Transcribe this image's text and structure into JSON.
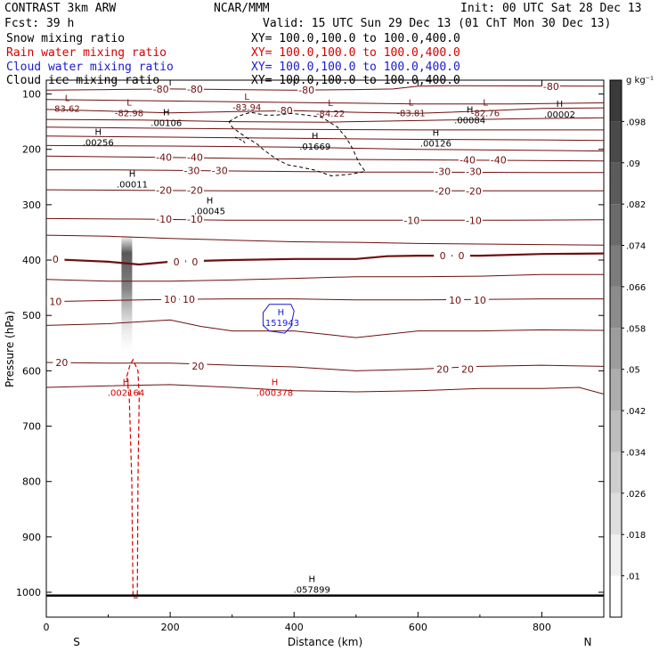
{
  "header": {
    "title": "CONTRAST  3km ARW",
    "center": "NCAR/MMM",
    "init": "Init: 00 UTC Sat 28 Dec 13",
    "fcst": "Fcst:   39 h",
    "valid": "Valid: 15 UTC Sun 29 Dec 13 (01 ChT Mon 30 Dec 13)"
  },
  "fields": [
    {
      "label": "Snow mixing ratio",
      "xy": "XY= 100.0,100.0 to 100.0,400.0",
      "color": "#000000"
    },
    {
      "label": "Rain water mixing ratio",
      "xy": "XY= 100.0,100.0 to 100.0,400.0",
      "color": "#d40000"
    },
    {
      "label": "Cloud water mixing ratio",
      "xy": "XY= 100.0,100.0 to 100.0,400.0",
      "color": "#1a1ad4"
    },
    {
      "label": "Cloud ice mixing ratio",
      "xy": "XY= 100.0,100.0 to 100.0,400.0",
      "color": "#000000"
    }
  ],
  "colorbar": {
    "unit": "g kg⁻¹",
    "ticks": [
      ".01",
      ".018",
      ".026",
      ".034",
      ".042",
      ".05",
      ".058",
      ".066",
      ".074",
      ".082",
      ".09",
      ".098"
    ],
    "low_color": "#ffffff",
    "high_color": "#3a3a3a"
  },
  "colors": {
    "temperature_contour": "#6e0f0f",
    "rain_water": "#d40000",
    "cloud_water": "#1a1ad4",
    "cloud_ice": "#000000"
  },
  "chart_data": {
    "type": "cross-section contour",
    "xlabel": "Distance (km)",
    "ylabel": "Pressure (hPa)",
    "xlim": [
      0,
      900
    ],
    "ylim": [
      1045,
      75
    ],
    "x_ticks": [
      "0",
      "200",
      "400",
      "600",
      "800"
    ],
    "y_ticks": [
      "100",
      "200",
      "300",
      "400",
      "500",
      "600",
      "700",
      "800",
      "900",
      "1000"
    ],
    "x_end_labels": {
      "left": "S",
      "right": "N"
    },
    "temperature_contours": [
      {
        "level": -80,
        "points": [
          [
            0,
            93
          ],
          [
            100,
            92
          ],
          [
            200,
            91
          ],
          [
            300,
            92
          ],
          [
            400,
            93
          ],
          [
            500,
            92
          ],
          [
            560,
            91
          ],
          [
            600,
            86
          ],
          [
            650,
            85
          ],
          [
            900,
            86
          ]
        ],
        "labels": [
          [
            185,
            91,
            "-80"
          ],
          [
            240,
            91,
            "-80"
          ],
          [
            420,
            93,
            "-80"
          ],
          [
            815,
            86,
            "-80"
          ]
        ]
      },
      {
        "level": null,
        "points": [
          [
            0,
            110
          ],
          [
            150,
            112
          ],
          [
            300,
            114
          ],
          [
            450,
            116
          ],
          [
            600,
            118
          ],
          [
            750,
            118
          ],
          [
            900,
            116
          ]
        ],
        "labels": []
      },
      {
        "level": null,
        "points": [
          [
            0,
            128
          ],
          [
            100,
            131
          ],
          [
            200,
            134
          ],
          [
            300,
            132
          ],
          [
            400,
            130
          ],
          [
            500,
            133
          ],
          [
            600,
            135
          ],
          [
            700,
            131
          ],
          [
            800,
            126
          ],
          [
            900,
            125
          ]
        ],
        "labels": [
          [
            385,
            130,
            "-80"
          ]
        ]
      },
      {
        "level": null,
        "points": [
          [
            0,
            146
          ],
          [
            150,
            147
          ],
          [
            300,
            150
          ],
          [
            450,
            151
          ],
          [
            600,
            148
          ],
          [
            750,
            145
          ],
          [
            900,
            143
          ]
        ],
        "labels": []
      },
      {
        "level": null,
        "points": [
          [
            0,
            160
          ],
          [
            200,
            162
          ],
          [
            400,
            164
          ],
          [
            600,
            165
          ],
          [
            800,
            165
          ],
          [
            900,
            165
          ]
        ],
        "labels": []
      },
      {
        "level": null,
        "points": [
          [
            0,
            176
          ],
          [
            200,
            178
          ],
          [
            400,
            180
          ],
          [
            600,
            182
          ],
          [
            800,
            183
          ],
          [
            900,
            184
          ]
        ],
        "labels": []
      },
      {
        "level": null,
        "points": [
          [
            0,
            193
          ],
          [
            200,
            194
          ],
          [
            400,
            196
          ],
          [
            600,
            200
          ],
          [
            800,
            202
          ],
          [
            900,
            203
          ]
        ],
        "labels": []
      },
      {
        "level": -40,
        "points": [
          [
            0,
            212
          ],
          [
            150,
            214
          ],
          [
            300,
            216
          ],
          [
            450,
            218
          ],
          [
            600,
            219
          ],
          [
            750,
            220
          ],
          [
            900,
            221
          ]
        ],
        "labels": [
          [
            190,
            214,
            "-40"
          ],
          [
            240,
            214,
            "-40"
          ],
          [
            680,
            219,
            "-40"
          ],
          [
            730,
            219,
            "-40"
          ]
        ]
      },
      {
        "level": -30,
        "points": [
          [
            0,
            237
          ],
          [
            100,
            237
          ],
          [
            200,
            238
          ],
          [
            300,
            239
          ],
          [
            400,
            240
          ],
          [
            500,
            241
          ],
          [
            600,
            241
          ],
          [
            800,
            242
          ],
          [
            900,
            242
          ]
        ],
        "labels": [
          [
            235,
            238,
            "-30"
          ],
          [
            280,
            238,
            "-30"
          ],
          [
            640,
            240,
            "-30"
          ],
          [
            690,
            240,
            "-30"
          ]
        ]
      },
      {
        "level": -20,
        "points": [
          [
            0,
            273
          ],
          [
            150,
            274
          ],
          [
            300,
            275
          ],
          [
            450,
            275
          ],
          [
            600,
            275
          ],
          [
            750,
            275
          ],
          [
            900,
            275
          ]
        ],
        "labels": [
          [
            190,
            274,
            "-20"
          ],
          [
            240,
            274,
            "-20"
          ],
          [
            640,
            275,
            "-20"
          ],
          [
            690,
            275,
            "-20"
          ]
        ]
      },
      {
        "level": -10,
        "points": [
          [
            0,
            325
          ],
          [
            150,
            326
          ],
          [
            300,
            328
          ],
          [
            450,
            328
          ],
          [
            600,
            328
          ],
          [
            750,
            328
          ],
          [
            900,
            327
          ]
        ],
        "labels": [
          [
            190,
            326,
            "-10"
          ],
          [
            240,
            326,
            "-10"
          ],
          [
            590,
            328,
            "-10"
          ],
          [
            690,
            328,
            "-10"
          ]
        ]
      },
      {
        "level": null,
        "points": [
          [
            0,
            355
          ],
          [
            100,
            357
          ],
          [
            200,
            361
          ],
          [
            300,
            364
          ],
          [
            400,
            367
          ],
          [
            500,
            368
          ],
          [
            600,
            370
          ],
          [
            700,
            371
          ],
          [
            800,
            372
          ],
          [
            900,
            373
          ]
        ],
        "labels": []
      },
      {
        "level": 0,
        "points": [
          [
            0,
            398
          ],
          [
            100,
            403
          ],
          [
            150,
            408
          ],
          [
            200,
            403
          ],
          [
            300,
            400
          ],
          [
            400,
            398
          ],
          [
            500,
            398
          ],
          [
            550,
            393
          ],
          [
            600,
            392
          ],
          [
            700,
            392
          ],
          [
            800,
            389
          ],
          [
            900,
            388
          ]
        ],
        "labels": [
          [
            15,
            398,
            "0"
          ],
          [
            210,
            403,
            "0"
          ],
          [
            240,
            403,
            "0"
          ],
          [
            640,
            392,
            "0"
          ],
          [
            670,
            392,
            "0"
          ]
        ],
        "thick": true
      },
      {
        "level": null,
        "points": [
          [
            0,
            435
          ],
          [
            100,
            438
          ],
          [
            200,
            438
          ],
          [
            300,
            436
          ],
          [
            400,
            433
          ],
          [
            500,
            430
          ],
          [
            600,
            430
          ],
          [
            700,
            429
          ],
          [
            800,
            426
          ],
          [
            900,
            426
          ]
        ],
        "labels": []
      },
      {
        "level": 10,
        "points": [
          [
            0,
            475
          ],
          [
            100,
            473
          ],
          [
            200,
            471
          ],
          [
            300,
            470
          ],
          [
            400,
            470
          ],
          [
            500,
            472
          ],
          [
            600,
            472
          ],
          [
            700,
            471
          ],
          [
            800,
            470
          ],
          [
            900,
            470
          ]
        ],
        "labels": [
          [
            15,
            475,
            "10"
          ],
          [
            200,
            471,
            "10"
          ],
          [
            230,
            471,
            "10"
          ],
          [
            660,
            472,
            "10"
          ],
          [
            700,
            472,
            "10"
          ]
        ]
      },
      {
        "level": null,
        "points": [
          [
            0,
            518
          ],
          [
            100,
            515
          ],
          [
            200,
            508
          ],
          [
            250,
            520
          ],
          [
            300,
            528
          ],
          [
            400,
            528
          ],
          [
            500,
            540
          ],
          [
            600,
            528
          ],
          [
            700,
            528
          ],
          [
            800,
            526
          ],
          [
            900,
            527
          ]
        ],
        "labels": []
      },
      {
        "level": 20,
        "points": [
          [
            0,
            585
          ],
          [
            100,
            586
          ],
          [
            200,
            586
          ],
          [
            300,
            590
          ],
          [
            400,
            593
          ],
          [
            500,
            600
          ],
          [
            600,
            597
          ],
          [
            700,
            592
          ],
          [
            800,
            590
          ],
          [
            900,
            592
          ]
        ],
        "labels": [
          [
            25,
            585,
            "20"
          ],
          [
            245,
            591,
            "20"
          ],
          [
            640,
            597,
            "20"
          ],
          [
            680,
            597,
            "20"
          ]
        ]
      },
      {
        "level": null,
        "points": [
          [
            0,
            630
          ],
          [
            100,
            627
          ],
          [
            200,
            625
          ],
          [
            300,
            630
          ],
          [
            400,
            636
          ],
          [
            500,
            638
          ],
          [
            600,
            636
          ],
          [
            700,
            632
          ],
          [
            800,
            632
          ],
          [
            860,
            630
          ],
          [
            900,
            642
          ]
        ],
        "labels": []
      }
    ],
    "extrema": [
      {
        "type": "L",
        "x": 5,
        "p": 119,
        "value": "83.62",
        "series": "temperature"
      },
      {
        "type": "L",
        "x": 105,
        "p": 127,
        "value": "-82.98",
        "series": "temperature"
      },
      {
        "type": "L",
        "x": 295,
        "p": 117,
        "value": "-83.94",
        "series": "temperature"
      },
      {
        "type": "L",
        "x": 430,
        "p": 128,
        "value": "-84.22",
        "series": "temperature"
      },
      {
        "type": "L",
        "x": 560,
        "p": 127,
        "value": "-83.81",
        "series": "temperature"
      },
      {
        "type": "L",
        "x": 680,
        "p": 127,
        "value": "-82.76",
        "series": "temperature"
      },
      {
        "type": "H",
        "x": 800,
        "p": 130,
        "value": ".00002",
        "series": "snow"
      },
      {
        "type": "H",
        "x": 655,
        "p": 140,
        "value": ".00084",
        "series": "snow"
      },
      {
        "type": "H",
        "x": 165,
        "p": 145,
        "value": ".00106",
        "series": "snow"
      },
      {
        "type": "H",
        "x": 55,
        "p": 180,
        "value": ".00256",
        "series": "snow"
      },
      {
        "type": "H",
        "x": 405,
        "p": 188,
        "value": ".01669",
        "series": "snow"
      },
      {
        "type": "H",
        "x": 600,
        "p": 182,
        "value": ".00126",
        "series": "snow"
      },
      {
        "type": "H",
        "x": 110,
        "p": 256,
        "value": ".00011",
        "series": "snow"
      },
      {
        "type": "H",
        "x": 235,
        "p": 304,
        "value": ".00045",
        "series": "snow"
      },
      {
        "type": "H",
        "x": 350,
        "p": 506,
        "value": ".151943",
        "series": "cloud_water"
      },
      {
        "type": "H",
        "x": 100,
        "p": 632,
        "value": ".002164",
        "series": "rain"
      },
      {
        "type": "H",
        "x": 340,
        "p": 632,
        "value": ".000378",
        "series": "rain"
      },
      {
        "type": "H",
        "x": 400,
        "p": 988,
        "value": ".057899",
        "series": "cloud_ice"
      }
    ],
    "cloud_ice_region": [
      [
        295,
        150
      ],
      [
        310,
        140
      ],
      [
        330,
        133
      ],
      [
        352,
        138
      ],
      [
        372,
        138
      ],
      [
        395,
        135
      ],
      [
        420,
        138
      ],
      [
        445,
        142
      ],
      [
        470,
        160
      ],
      [
        485,
        180
      ],
      [
        495,
        200
      ],
      [
        505,
        225
      ],
      [
        515,
        240
      ],
      [
        490,
        245
      ],
      [
        460,
        248
      ],
      [
        435,
        238
      ],
      [
        410,
        232
      ],
      [
        390,
        228
      ],
      [
        375,
        220
      ],
      [
        362,
        210
      ],
      [
        350,
        200
      ],
      [
        340,
        190
      ],
      [
        325,
        180
      ],
      [
        312,
        170
      ],
      [
        300,
        160
      ]
    ],
    "cloud_ice_patch": [
      [
        305,
        178
      ],
      [
        318,
        185
      ],
      [
        322,
        190
      ]
    ],
    "cloud_water_region": [
      [
        350,
        495
      ],
      [
        360,
        480
      ],
      [
        385,
        480
      ],
      [
        395,
        480
      ],
      [
        400,
        492
      ],
      [
        395,
        520
      ],
      [
        385,
        532
      ],
      [
        360,
        528
      ],
      [
        350,
        518
      ]
    ],
    "rain_region": [
      [
        130,
        610
      ],
      [
        135,
        590
      ],
      [
        140,
        580
      ],
      [
        148,
        600
      ],
      [
        150,
        650
      ],
      [
        148,
        800
      ],
      [
        147,
        1010
      ],
      [
        140,
        1010
      ],
      [
        138,
        800
      ],
      [
        134,
        650
      ]
    ],
    "snow_shading": {
      "x_center": 130,
      "p_top": 355,
      "p_bottom": 570
    }
  }
}
